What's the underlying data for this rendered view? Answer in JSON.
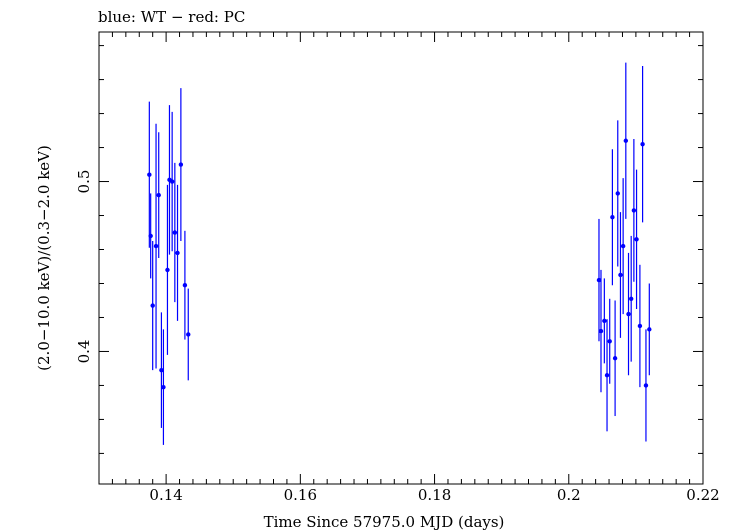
{
  "chart_data": {
    "type": "scatter",
    "title": "blue: WT − red: PC",
    "xlabel": "Time Since 57975.0 MJD (days)",
    "ylabel": "(2.0−10.0 keV)/(0.3−2.0 keV)",
    "xlim": [
      0.13,
      0.22
    ],
    "ylim": [
      0.322,
      0.588
    ],
    "xticks": [
      0.14,
      0.16,
      0.18,
      0.2,
      0.22
    ],
    "xtick_labels": [
      "0.14",
      "0.16",
      "0.18",
      "0.2",
      "0.22"
    ],
    "yticks": [
      0.4,
      0.5
    ],
    "ytick_labels": [
      "0.4",
      "0.5"
    ],
    "series": [
      {
        "name": "WT",
        "color": "#0000ff",
        "points": [
          {
            "x": 0.1375,
            "y": 0.504,
            "err": 0.043
          },
          {
            "x": 0.1377,
            "y": 0.468,
            "err": 0.025
          },
          {
            "x": 0.138,
            "y": 0.427,
            "err": 0.038
          },
          {
            "x": 0.1385,
            "y": 0.462,
            "err": 0.072
          },
          {
            "x": 0.1389,
            "y": 0.492,
            "err": 0.037
          },
          {
            "x": 0.1393,
            "y": 0.389,
            "err": 0.034
          },
          {
            "x": 0.1396,
            "y": 0.379,
            "err": 0.034
          },
          {
            "x": 0.1402,
            "y": 0.448,
            "err": 0.05
          },
          {
            "x": 0.1405,
            "y": 0.501,
            "err": 0.044
          },
          {
            "x": 0.1409,
            "y": 0.5,
            "err": 0.041
          },
          {
            "x": 0.1413,
            "y": 0.47,
            "err": 0.041
          },
          {
            "x": 0.1417,
            "y": 0.458,
            "err": 0.04
          },
          {
            "x": 0.1422,
            "y": 0.51,
            "err": 0.045
          },
          {
            "x": 0.1428,
            "y": 0.439,
            "err": 0.032
          },
          {
            "x": 0.1433,
            "y": 0.41,
            "err": 0.027
          },
          {
            "x": 0.2045,
            "y": 0.442,
            "err": 0.036
          },
          {
            "x": 0.2048,
            "y": 0.412,
            "err": 0.036
          },
          {
            "x": 0.2053,
            "y": 0.418,
            "err": 0.025
          },
          {
            "x": 0.2057,
            "y": 0.386,
            "err": 0.033
          },
          {
            "x": 0.2061,
            "y": 0.406,
            "err": 0.025
          },
          {
            "x": 0.2065,
            "y": 0.479,
            "err": 0.04
          },
          {
            "x": 0.2069,
            "y": 0.396,
            "err": 0.034
          },
          {
            "x": 0.2073,
            "y": 0.493,
            "err": 0.043
          },
          {
            "x": 0.2077,
            "y": 0.445,
            "err": 0.037
          },
          {
            "x": 0.2081,
            "y": 0.462,
            "err": 0.04
          },
          {
            "x": 0.2085,
            "y": 0.524,
            "err": 0.046
          },
          {
            "x": 0.2089,
            "y": 0.422,
            "err": 0.036
          },
          {
            "x": 0.2093,
            "y": 0.431,
            "err": 0.037
          },
          {
            "x": 0.2097,
            "y": 0.483,
            "err": 0.042
          },
          {
            "x": 0.2101,
            "y": 0.466,
            "err": 0.041
          },
          {
            "x": 0.2106,
            "y": 0.415,
            "err": 0.036
          },
          {
            "x": 0.211,
            "y": 0.522,
            "err": 0.046
          },
          {
            "x": 0.2115,
            "y": 0.38,
            "err": 0.033
          },
          {
            "x": 0.212,
            "y": 0.413,
            "err": 0.027
          }
        ]
      }
    ]
  }
}
